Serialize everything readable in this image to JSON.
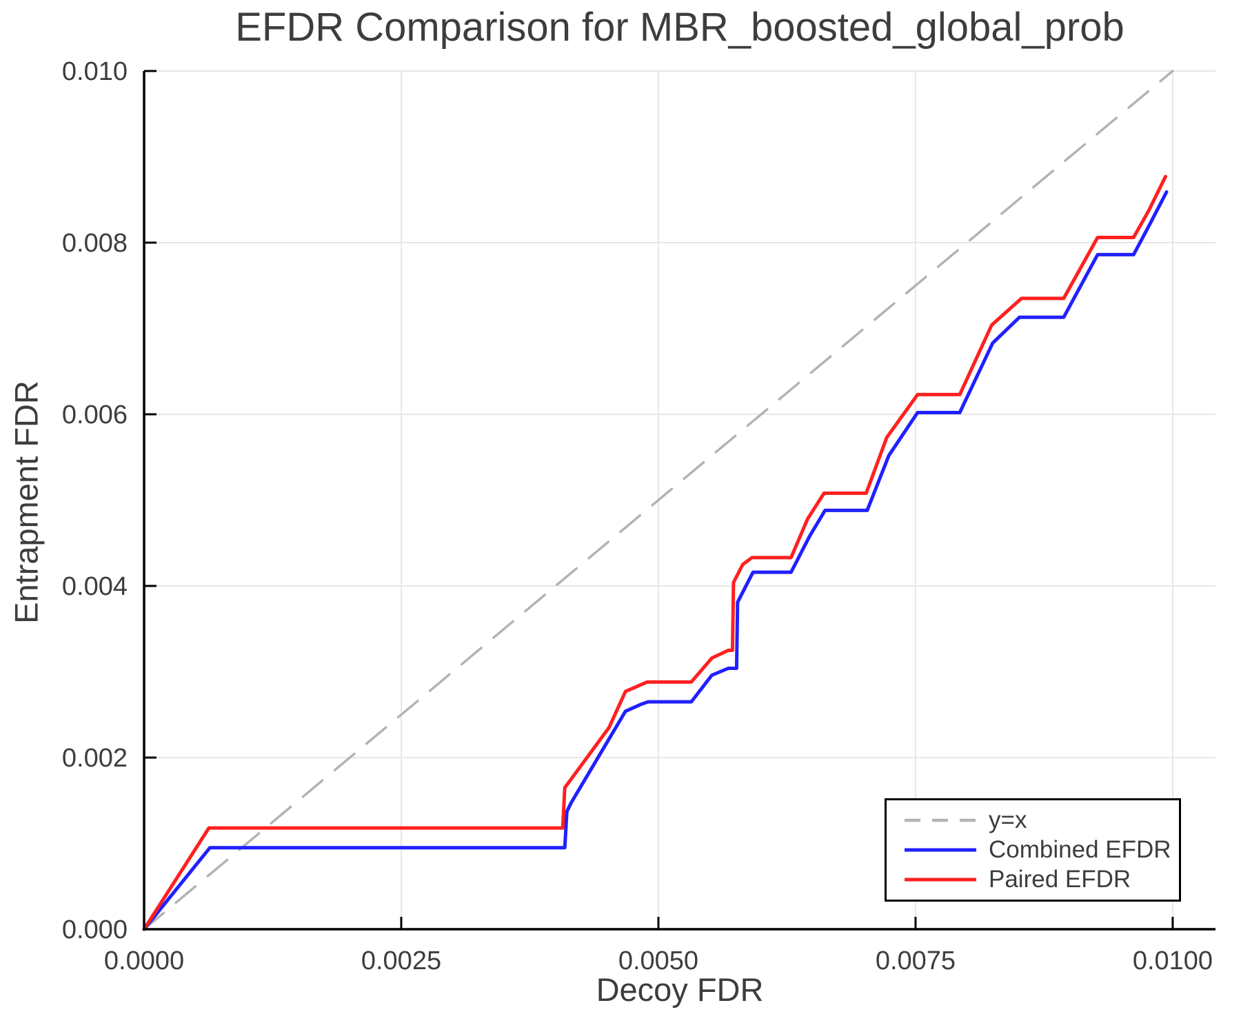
{
  "chart_data": {
    "type": "line",
    "title": "EFDR Comparison for MBR_boosted_global_prob",
    "xlabel": "Decoy FDR",
    "ylabel": "Entrapment FDR",
    "xlim": [
      0,
      0.010416
    ],
    "ylim": [
      0,
      0.01
    ],
    "xticks": [
      0,
      0.0025,
      0.005,
      0.0075,
      0.01
    ],
    "xtick_labels": [
      "0.0000",
      "0.0025",
      "0.0050",
      "0.0075",
      "0.0100"
    ],
    "yticks": [
      0,
      0.002,
      0.004,
      0.006,
      0.008,
      0.01
    ],
    "ytick_labels": [
      "0.000",
      "0.002",
      "0.004",
      "0.006",
      "0.008",
      "0.010"
    ],
    "grid": true,
    "legend_position": "lower right",
    "colors": {
      "grid": "#e7e7e7",
      "spine": "#000000",
      "text": "#3d3d3d",
      "background": "#ffffff",
      "identity_line": "#b3b3b3",
      "combined": "#2020ff",
      "paired": "#ff2020"
    },
    "series": [
      {
        "name": "y=x",
        "color": "#b3b3b3",
        "style": "dashed",
        "width": 3.5,
        "points": [
          [
            0,
            0
          ],
          [
            0.01,
            0.01
          ]
        ]
      },
      {
        "name": "Combined EFDR",
        "color": "#2020ff",
        "style": "solid",
        "width": 5,
        "points": [
          [
            0.0,
            0.0
          ],
          [
            0.00064,
            0.00095
          ],
          [
            0.00409,
            0.00095
          ],
          [
            0.00411,
            0.00137
          ],
          [
            0.00415,
            0.00147
          ],
          [
            0.00468,
            0.00254
          ],
          [
            0.00483,
            0.00262
          ],
          [
            0.0049,
            0.00265
          ],
          [
            0.00532,
            0.00265
          ],
          [
            0.00552,
            0.00296
          ],
          [
            0.00568,
            0.00304
          ],
          [
            0.00576,
            0.00304
          ],
          [
            0.00577,
            0.00381
          ],
          [
            0.00592,
            0.00416
          ],
          [
            0.00629,
            0.00416
          ],
          [
            0.00647,
            0.00458
          ],
          [
            0.00662,
            0.00488
          ],
          [
            0.00703,
            0.00488
          ],
          [
            0.00724,
            0.00552
          ],
          [
            0.00752,
            0.00602
          ],
          [
            0.00793,
            0.00602
          ],
          [
            0.00825,
            0.00683
          ],
          [
            0.00851,
            0.00713
          ],
          [
            0.00894,
            0.00713
          ],
          [
            0.00927,
            0.00786
          ],
          [
            0.00962,
            0.00786
          ],
          [
            0.00978,
            0.00822
          ],
          [
            0.00994,
            0.00859
          ]
        ]
      },
      {
        "name": "Paired EFDR",
        "color": "#ff2020",
        "style": "solid",
        "width": 5,
        "points": [
          [
            0.0,
            0.0
          ],
          [
            0.00063,
            0.00118
          ],
          [
            0.00407,
            0.00118
          ],
          [
            0.00409,
            0.00165
          ],
          [
            0.00414,
            0.00173
          ],
          [
            0.00452,
            0.00235
          ],
          [
            0.00468,
            0.00277
          ],
          [
            0.00489,
            0.00288
          ],
          [
            0.00532,
            0.00288
          ],
          [
            0.00552,
            0.00316
          ],
          [
            0.00568,
            0.00325
          ],
          [
            0.00572,
            0.00325
          ],
          [
            0.00573,
            0.00404
          ],
          [
            0.00582,
            0.00425
          ],
          [
            0.00591,
            0.00433
          ],
          [
            0.00629,
            0.00433
          ],
          [
            0.00645,
            0.00478
          ],
          [
            0.00661,
            0.00508
          ],
          [
            0.00702,
            0.00508
          ],
          [
            0.00722,
            0.00573
          ],
          [
            0.00752,
            0.00623
          ],
          [
            0.00793,
            0.00623
          ],
          [
            0.00824,
            0.00704
          ],
          [
            0.00853,
            0.00735
          ],
          [
            0.00894,
            0.00735
          ],
          [
            0.00927,
            0.00806
          ],
          [
            0.00962,
            0.00806
          ],
          [
            0.00977,
            0.00838
          ],
          [
            0.00993,
            0.00877
          ]
        ]
      }
    ]
  }
}
